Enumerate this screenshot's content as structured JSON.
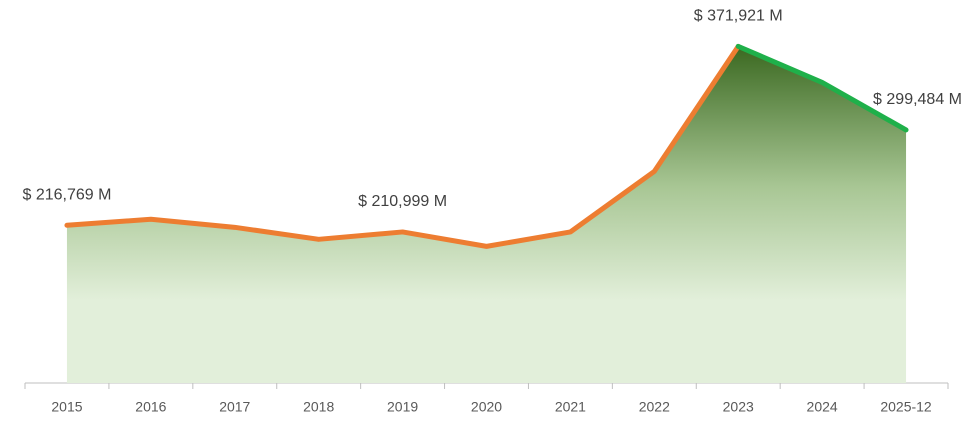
{
  "chart_data": {
    "type": "area",
    "categories": [
      "2015",
      "2016",
      "2017",
      "2018",
      "2019",
      "2020",
      "2021",
      "2022",
      "2023",
      "2024",
      "2025-12"
    ],
    "values": [
      216769,
      222000,
      215000,
      204600,
      210999,
      198500,
      211000,
      263500,
      371921,
      340650,
      299484
    ],
    "value_labels": [
      "$ 216,769 M",
      null,
      null,
      null,
      "$ 210,999 M",
      null,
      null,
      null,
      "$ 371,921 M",
      null,
      "$ 299,484 M"
    ],
    "line_color": "#ed7d31",
    "highlight_start": "2023",
    "highlight_color": "#1fb04a",
    "ylim": [
      80000,
      400000
    ]
  }
}
